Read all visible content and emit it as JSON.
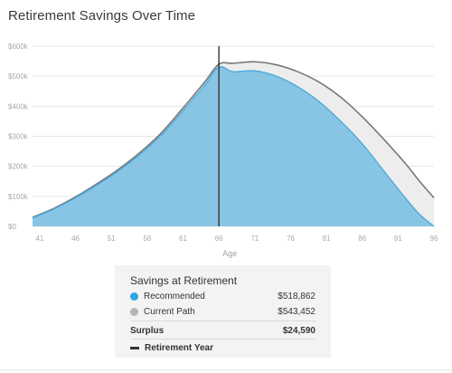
{
  "chart_data": {
    "type": "area",
    "title": "Retirement Savings Over Time",
    "xlabel": "Age",
    "ylabel": "",
    "xlim": [
      40,
      96
    ],
    "ylim": [
      0,
      600000
    ],
    "grid": true,
    "x_ticks": [
      "41",
      "46",
      "51",
      "56",
      "61",
      "66",
      "71",
      "76",
      "81",
      "86",
      "91",
      "96"
    ],
    "y_ticks": [
      "$0",
      "$100k",
      "$200k",
      "$300k",
      "$400k",
      "$500k",
      "$600k"
    ],
    "retirement_age": 66,
    "series": [
      {
        "name": "Recommended",
        "color": "#88c4e3",
        "line_color": "#4aa9dd",
        "x": [
          40,
          43,
          46,
          49,
          52,
          55,
          58,
          61,
          64,
          66,
          68,
          71,
          74,
          77,
          80,
          83,
          86,
          89,
          92,
          94,
          96
        ],
        "values": [
          28000,
          58000,
          95000,
          138000,
          185000,
          240000,
          305000,
          385000,
          470000,
          530000,
          515000,
          518000,
          500000,
          465000,
          415000,
          350000,
          275000,
          185000,
          95000,
          40000,
          0
        ]
      },
      {
        "name": "Current Path",
        "color": "#ededed",
        "line_color": "#777777",
        "x": [
          40,
          43,
          46,
          49,
          52,
          55,
          58,
          61,
          64,
          66,
          68,
          71,
          74,
          77,
          80,
          83,
          86,
          89,
          92,
          94,
          96
        ],
        "values": [
          30000,
          60000,
          98000,
          142000,
          190000,
          246000,
          312000,
          394000,
          480000,
          540000,
          543000,
          548000,
          538000,
          515000,
          480000,
          430000,
          365000,
          290000,
          210000,
          150000,
          95000
        ]
      }
    ]
  },
  "legend": {
    "title": "Savings at Retirement",
    "recommended_label": "Recommended",
    "recommended_value": "$518,862",
    "recommended_color": "#2ca7e0",
    "current_label": "Current Path",
    "current_value": "$543,452",
    "current_color": "#b5b5b5",
    "surplus_label": "Surplus",
    "surplus_value": "$24,590",
    "retirement_year_label": "Retirement Year"
  }
}
